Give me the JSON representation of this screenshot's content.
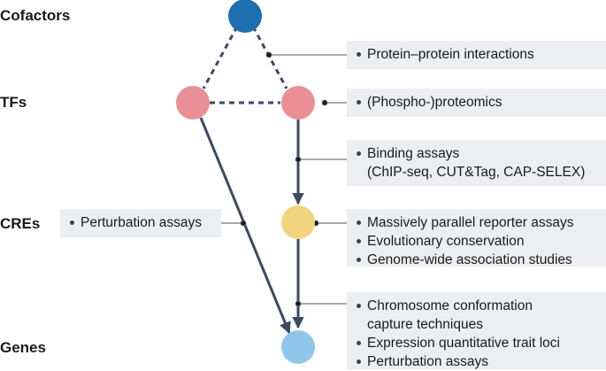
{
  "row_labels": {
    "cofactors": "Cofactors",
    "tfs": "TFs",
    "cres": "CREs",
    "genes": "Genes"
  },
  "colors": {
    "cofactor_node": "#1f6fae",
    "tf_node": "#ea8f96",
    "cre_node": "#f3d37d",
    "gene_node": "#8fc7ec",
    "edge": "#3b4a63",
    "box_bg": "#eceef1"
  },
  "boxes": {
    "ppi": {
      "items": [
        "Protein–protein interactions"
      ]
    },
    "phospho": {
      "items": [
        "(Phospho-)proteomics"
      ]
    },
    "binding": {
      "item": "Binding assays",
      "continuation": "(ChIP-seq, CUT&Tag, CAP-SELEX)"
    },
    "perturbation_left": {
      "items": [
        "Perturbation assays"
      ]
    },
    "cre_methods": {
      "items": [
        "Massively parallel reporter assays",
        "Evolutionary conservation",
        "Genome-wide association studies"
      ]
    },
    "gene_methods": {
      "item1": "Chromosome conformation",
      "item1_cont": "capture techniques",
      "item2": "Expression quantitative trait loci",
      "item3": "Perturbation assays"
    }
  }
}
